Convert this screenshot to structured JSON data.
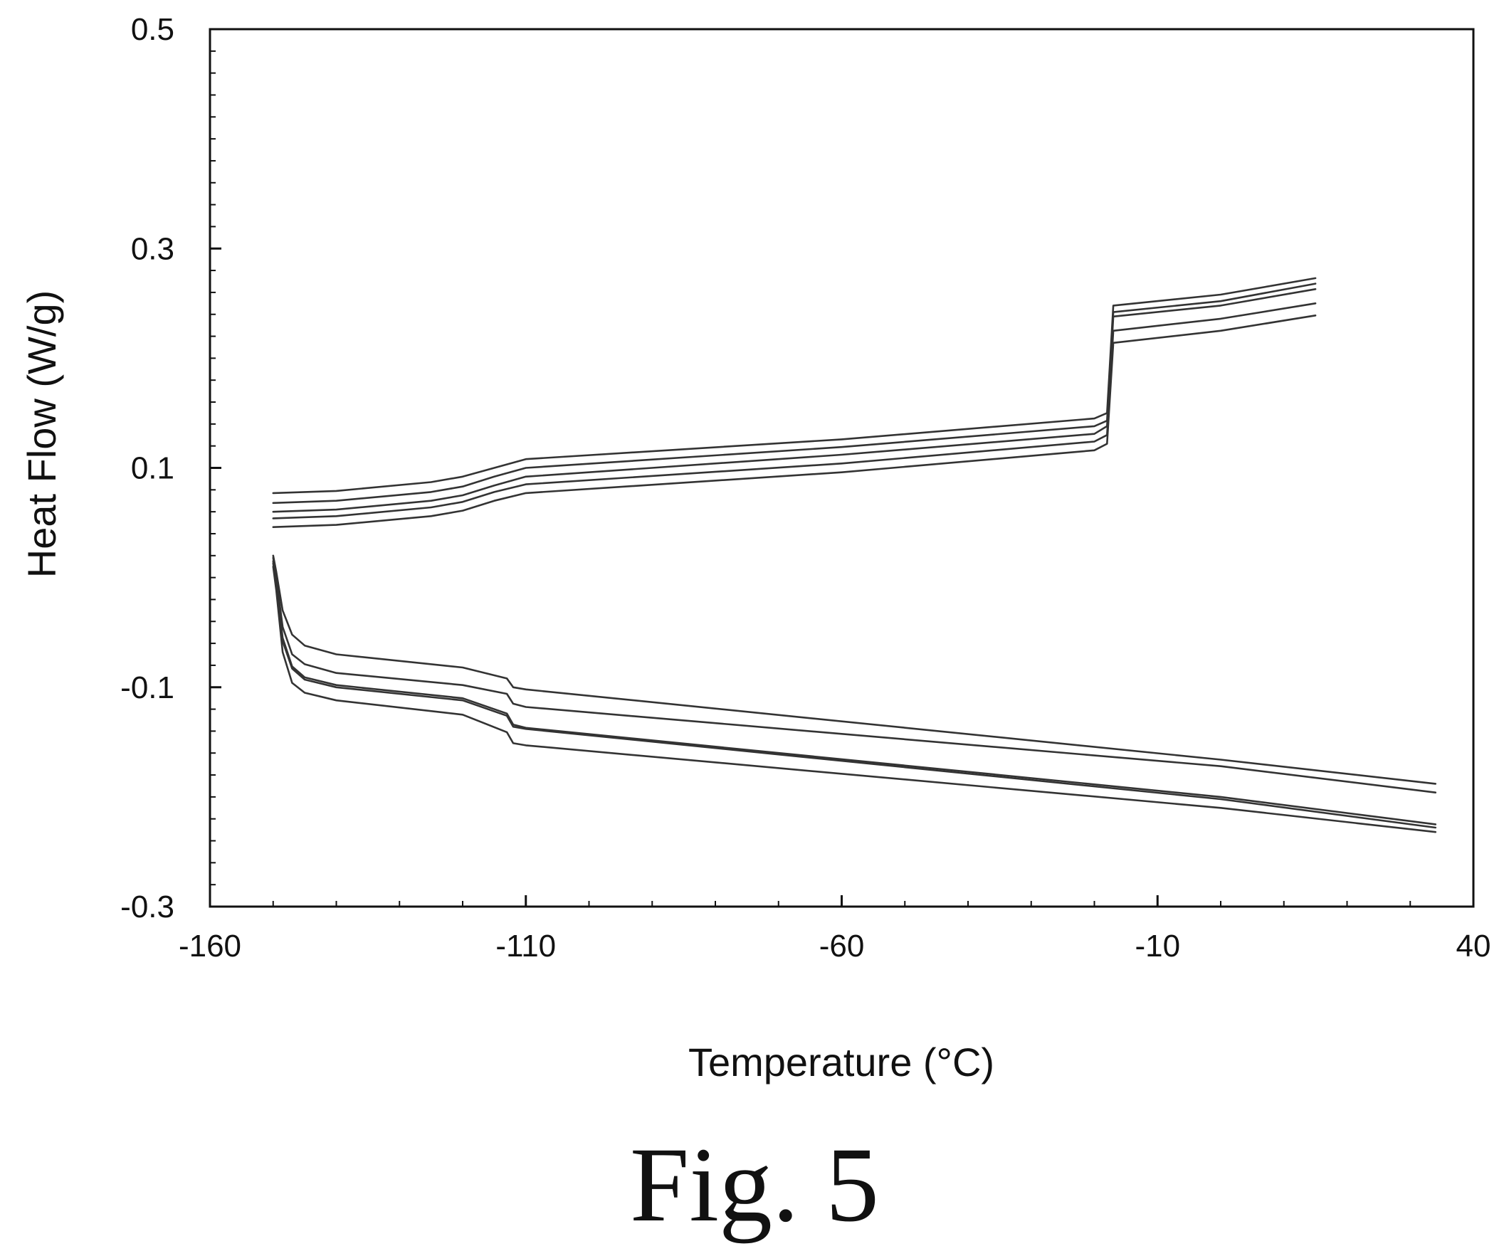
{
  "figure": {
    "caption": "Fig. 5"
  },
  "colors": {
    "axis": "#111111",
    "curve": "#333333",
    "background": "#ffffff"
  },
  "chart_data": {
    "type": "line",
    "title": "",
    "xlabel": "Temperature (°C)",
    "ylabel": "Heat Flow (W/g)",
    "xlim": [
      -160,
      40
    ],
    "ylim": [
      -0.3,
      0.5
    ],
    "xticks": [
      -160,
      -110,
      -60,
      -10,
      40
    ],
    "xtick_labels": [
      "-160",
      "-110",
      "-60",
      "-10",
      "40"
    ],
    "yticks": [
      -0.3,
      -0.1,
      0.1,
      0.3,
      0.5
    ],
    "ytick_labels": [
      "-0.3",
      "-0.1",
      "0.1",
      "0.3",
      "0.5"
    ],
    "grid": false,
    "legend": "none",
    "series": [
      {
        "x": [
          -150,
          -140,
          -125,
          -120,
          -115,
          -110,
          -60,
          -20,
          -18,
          -17,
          0,
          15
        ],
        "y": [
          0.077,
          0.079,
          0.087,
          0.092,
          0.1,
          0.108,
          0.126,
          0.145,
          0.15,
          0.248,
          0.258,
          0.273
        ]
      },
      {
        "x": [
          -150,
          -140,
          -125,
          -120,
          -115,
          -110,
          -60,
          -20,
          -18,
          -17,
          0,
          15
        ],
        "y": [
          0.068,
          0.07,
          0.078,
          0.083,
          0.092,
          0.1,
          0.119,
          0.138,
          0.143,
          0.242,
          0.252,
          0.268
        ]
      },
      {
        "x": [
          -150,
          -140,
          -125,
          -120,
          -115,
          -110,
          -60,
          -20,
          -18,
          -17,
          0,
          15
        ],
        "y": [
          0.06,
          0.062,
          0.07,
          0.075,
          0.084,
          0.092,
          0.112,
          0.131,
          0.138,
          0.238,
          0.248,
          0.263
        ]
      },
      {
        "x": [
          -150,
          -140,
          -125,
          -120,
          -115,
          -110,
          -60,
          -20,
          -18,
          -17,
          0,
          15
        ],
        "y": [
          0.054,
          0.056,
          0.064,
          0.069,
          0.078,
          0.085,
          0.104,
          0.124,
          0.13,
          0.225,
          0.236,
          0.25
        ]
      },
      {
        "x": [
          -150,
          -140,
          -125,
          -120,
          -115,
          -110,
          -60,
          -20,
          -18,
          -17,
          0,
          15
        ],
        "y": [
          0.046,
          0.048,
          0.056,
          0.061,
          0.07,
          0.077,
          0.096,
          0.116,
          0.122,
          0.214,
          0.225,
          0.239
        ]
      },
      {
        "x": [
          -150,
          -149.5,
          -148.5,
          -147,
          -145,
          -140,
          -120,
          -113,
          -112,
          -110,
          0,
          34
        ],
        "y": [
          0.02,
          0.005,
          -0.03,
          -0.052,
          -0.062,
          -0.07,
          -0.082,
          -0.092,
          -0.1,
          -0.102,
          -0.166,
          -0.188
        ]
      },
      {
        "x": [
          -150,
          -149.5,
          -148.5,
          -147,
          -145,
          -140,
          -120,
          -113,
          -112,
          -110,
          0,
          34
        ],
        "y": [
          0.018,
          0.0,
          -0.045,
          -0.07,
          -0.079,
          -0.087,
          -0.098,
          -0.106,
          -0.115,
          -0.118,
          -0.172,
          -0.196
        ]
      },
      {
        "x": [
          -150,
          -149.5,
          -148.5,
          -147,
          -145,
          -140,
          -120,
          -113,
          -112,
          -110,
          0,
          34
        ],
        "y": [
          0.015,
          -0.005,
          -0.055,
          -0.081,
          -0.091,
          -0.098,
          -0.11,
          -0.124,
          -0.134,
          -0.137,
          -0.2,
          -0.225
        ]
      },
      {
        "x": [
          -150,
          -149.5,
          -148.5,
          -147,
          -145,
          -140,
          -120,
          -113,
          -112,
          -110,
          0,
          34
        ],
        "y": [
          0.013,
          -0.008,
          -0.058,
          -0.083,
          -0.093,
          -0.1,
          -0.112,
          -0.126,
          -0.136,
          -0.138,
          -0.202,
          -0.228
        ]
      },
      {
        "x": [
          -150,
          -149.5,
          -148.5,
          -147,
          -145,
          -140,
          -120,
          -113,
          -112,
          -110,
          0,
          34
        ],
        "y": [
          0.01,
          -0.012,
          -0.068,
          -0.096,
          -0.105,
          -0.112,
          -0.125,
          -0.141,
          -0.151,
          -0.153,
          -0.21,
          -0.232
        ]
      }
    ]
  }
}
